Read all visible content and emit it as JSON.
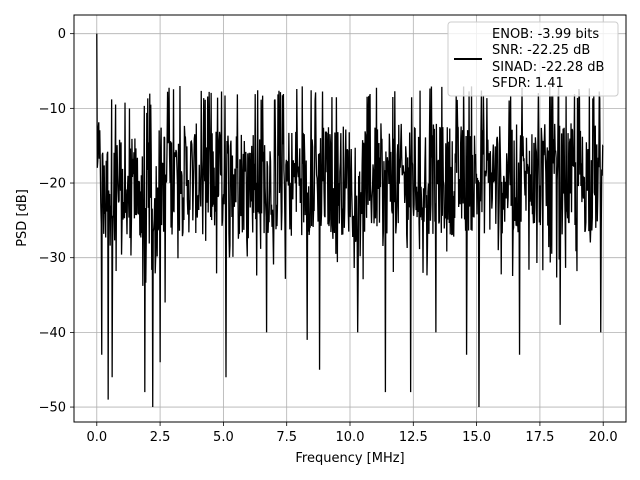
{
  "chart_data": {
    "type": "line",
    "title": "",
    "xlabel": "Frequency [MHz]",
    "ylabel": "PSD [dB]",
    "xlim": [
      -0.9,
      20.9
    ],
    "ylim": [
      -52,
      2.5
    ],
    "xticks": [
      0.0,
      2.5,
      5.0,
      7.5,
      10.0,
      12.5,
      15.0,
      17.5,
      20.0
    ],
    "xtick_labels": [
      "0.0",
      "2.5",
      "5.0",
      "7.5",
      "10.0",
      "12.5",
      "15.0",
      "17.5",
      "20.0"
    ],
    "yticks": [
      0,
      -10,
      -20,
      -30,
      -40,
      -50
    ],
    "ytick_labels": [
      "0",
      "−10",
      "−20",
      "−30",
      "−40",
      "−50"
    ],
    "grid": true,
    "legend_placement": "top-right",
    "legend": {
      "lines": [
        "ENOB: -3.99 bits",
        "SNR: -22.25 dB",
        "SINAD: -22.28 dB",
        "SFDR: 1.41"
      ]
    },
    "series": [
      {
        "color": "#000000",
        "x_range": [
          0.0,
          20.0
        ],
        "num_points": 1024,
        "start_peak_db": 0,
        "typical_band_db": [
          -27,
          -12
        ],
        "upper_envelope_db": -7,
        "deep_dips": [
          {
            "x": 0.2,
            "y": -43
          },
          {
            "x": 0.45,
            "y": -49
          },
          {
            "x": 0.6,
            "y": -46
          },
          {
            "x": 1.9,
            "y": -48
          },
          {
            "x": 2.2,
            "y": -50
          },
          {
            "x": 2.5,
            "y": -44
          },
          {
            "x": 2.7,
            "y": -36
          },
          {
            "x": 5.1,
            "y": -46
          },
          {
            "x": 6.7,
            "y": -40
          },
          {
            "x": 8.3,
            "y": -41
          },
          {
            "x": 8.8,
            "y": -45
          },
          {
            "x": 10.3,
            "y": -40
          },
          {
            "x": 11.4,
            "y": -48
          },
          {
            "x": 12.4,
            "y": -48
          },
          {
            "x": 13.4,
            "y": -40
          },
          {
            "x": 14.6,
            "y": -43
          },
          {
            "x": 15.1,
            "y": -50
          },
          {
            "x": 16.7,
            "y": -43
          },
          {
            "x": 18.3,
            "y": -39
          },
          {
            "x": 19.9,
            "y": -40
          }
        ]
      }
    ]
  }
}
